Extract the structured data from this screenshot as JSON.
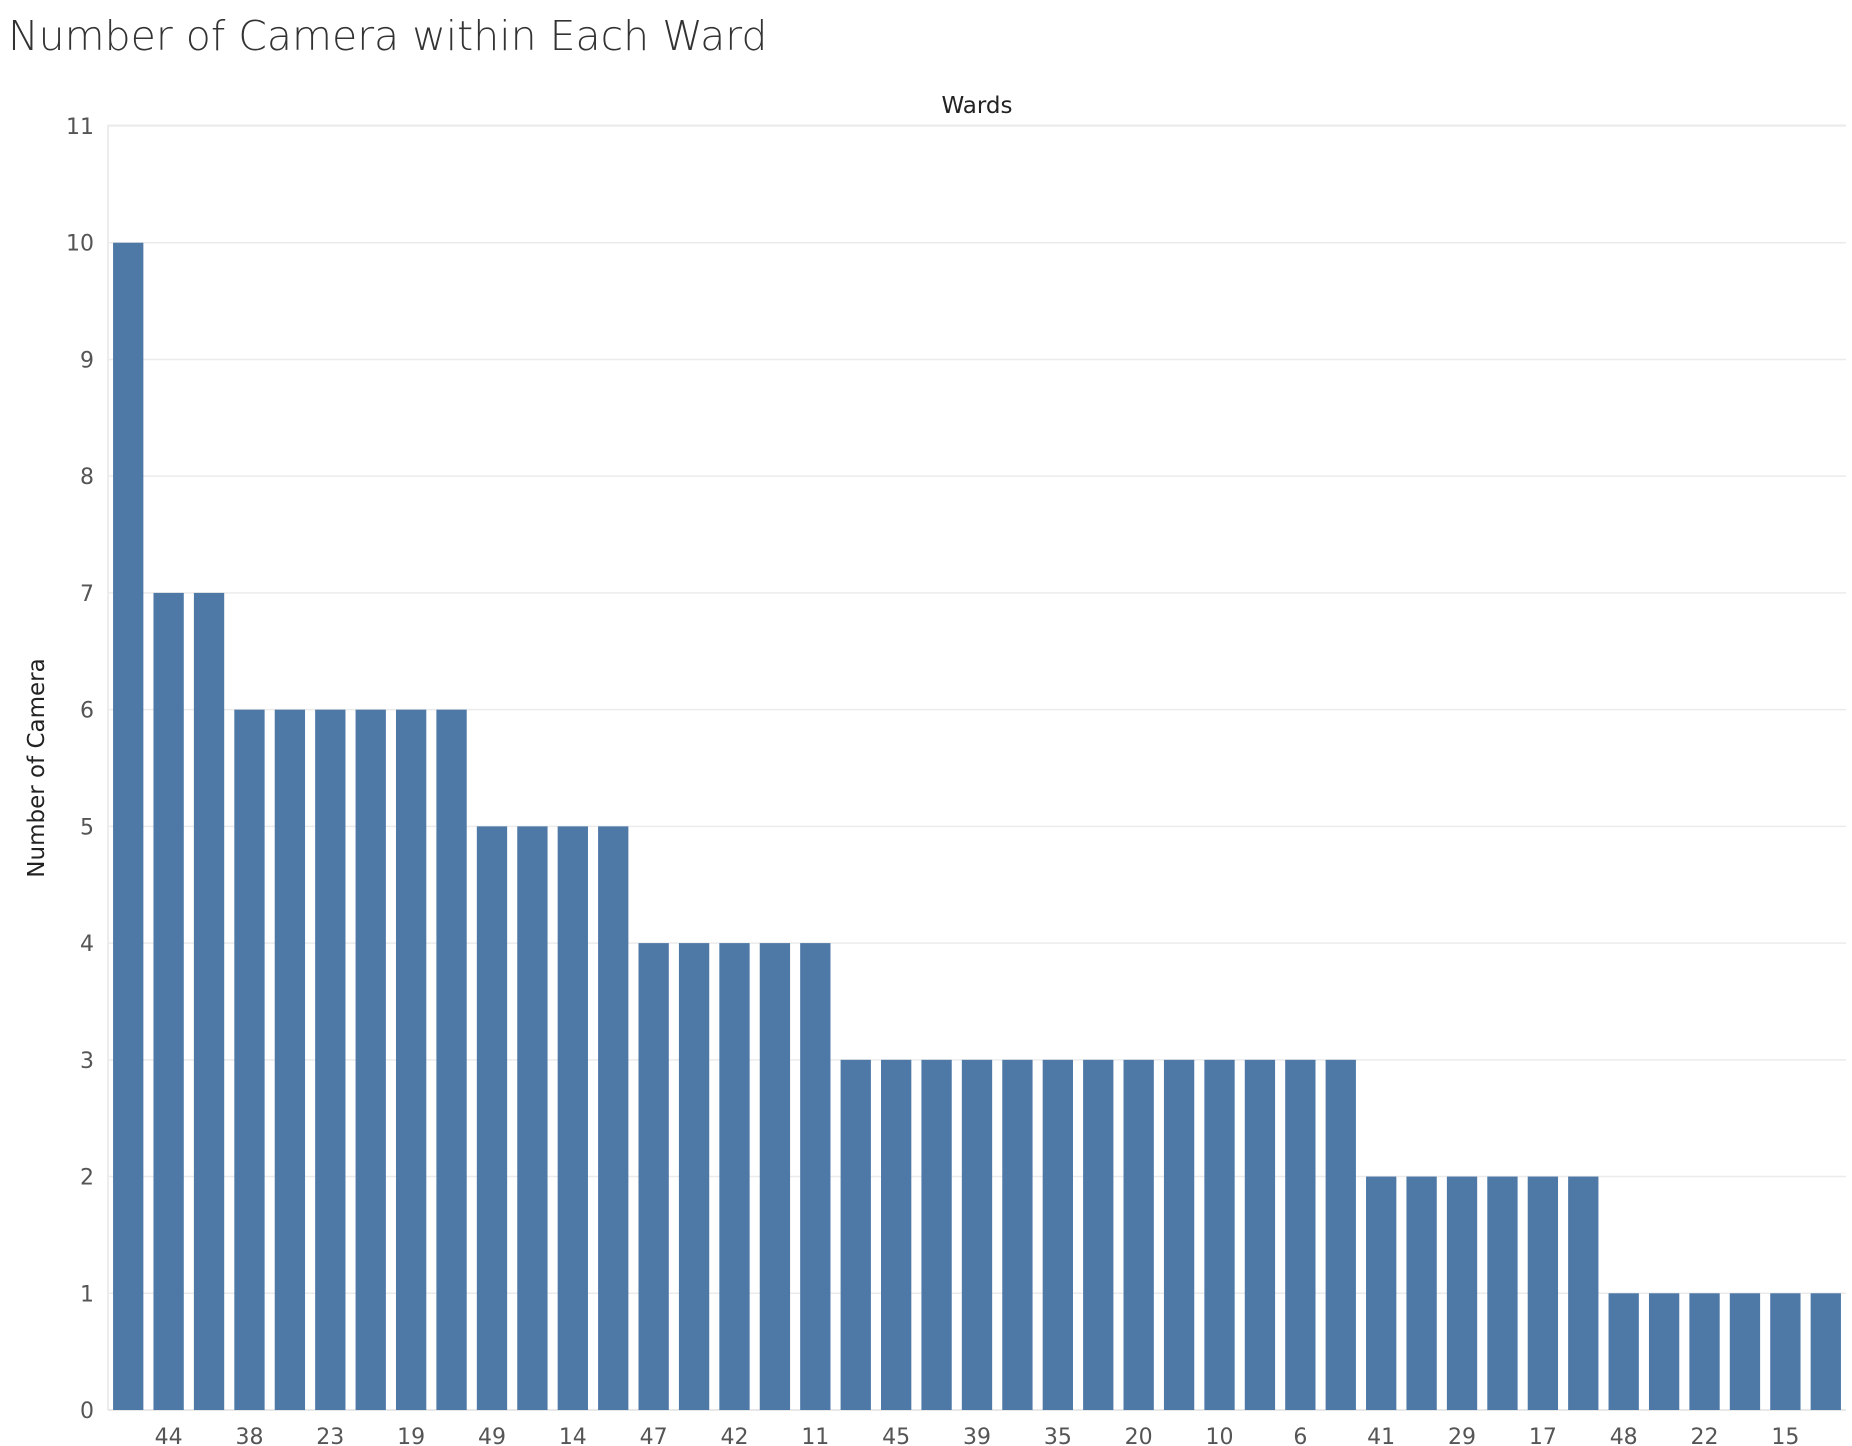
{
  "chart_data": {
    "type": "bar",
    "title": "Number of Camera within Each Ward",
    "xlabel": "Wards",
    "ylabel": "Number of Camera",
    "ylim": [
      0,
      11
    ],
    "yticks": [
      0,
      1,
      2,
      3,
      4,
      5,
      6,
      7,
      8,
      9,
      10,
      11
    ],
    "grid": true,
    "bar_color": "#4e79a7",
    "categories": [
      "",
      "44",
      "",
      "38",
      "",
      "23",
      "",
      "19",
      "",
      "49",
      "",
      "14",
      "",
      "47",
      "",
      "42",
      "",
      "11",
      "",
      "45",
      "",
      "39",
      "",
      "35",
      "",
      "20",
      "",
      "10",
      "",
      "6",
      "",
      "41",
      "",
      "29",
      "",
      "17",
      "",
      "48",
      "",
      "22",
      "",
      "15",
      ""
    ],
    "values": [
      10,
      7,
      7,
      6,
      6,
      6,
      6,
      6,
      6,
      5,
      5,
      5,
      5,
      4,
      4,
      4,
      4,
      4,
      3,
      3,
      3,
      3,
      3,
      3,
      3,
      3,
      3,
      3,
      3,
      3,
      3,
      2,
      2,
      2,
      2,
      2,
      2,
      1,
      1,
      1,
      1,
      1,
      1
    ]
  }
}
